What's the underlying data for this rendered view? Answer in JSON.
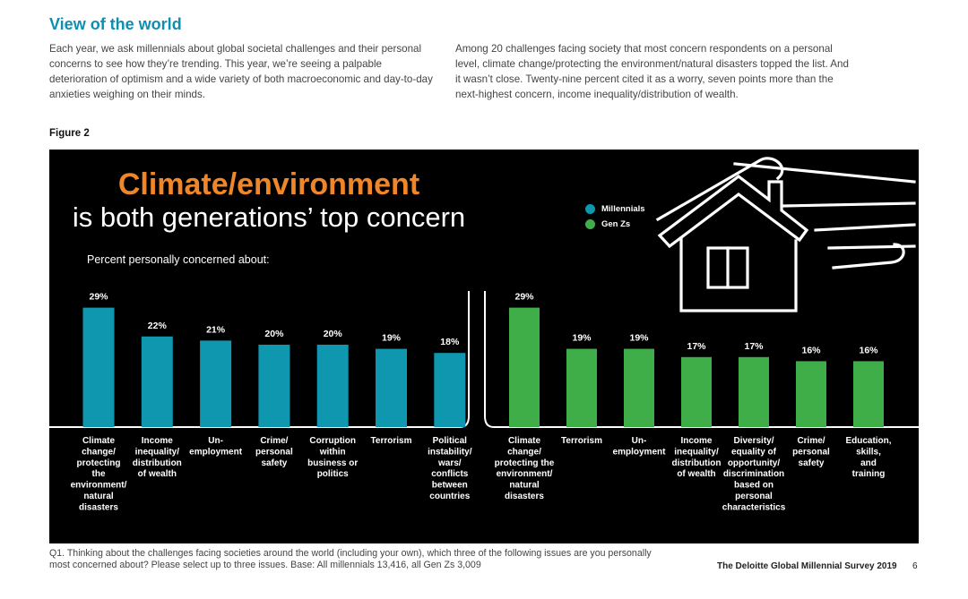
{
  "section_title": "View of the world",
  "intro_left": "Each year, we ask millennials about global societal challenges and their personal concerns to see how they’re trending. This year, we’re seeing a palpable deterioration of optimism and a wide variety of both macroeconomic and day-to-day anxieties weighing on their minds.",
  "intro_right": "Among 20 challenges facing society that most concern respondents on a personal level, climate change/protecting the environment/natural disasters topped the list. And it wasn’t close. Twenty-nine percent cited it as a worry, seven points more than the next-highest concern, income inequality/distribution of wealth.",
  "figure_label": "Figure 2",
  "footnote": "Q1. Thinking about the challenges facing societies around the world (including your own), which three of the following issues are you personally most concerned about? Please select up to three issues. Base: All millennials 13,416, all Gen Zs 3,009",
  "publication": "The Deloitte Global Millennial Survey 2019",
  "page_number": "6",
  "colors": {
    "millennials": "#0e97ae",
    "genz": "#3fae49",
    "accent_orange": "#f0862a",
    "panel_bg": "#000000"
  },
  "chart_data": {
    "type": "bar",
    "title": "Climate/environment",
    "subtitle": "is both generations’ top concern",
    "ylabel": "Percent personally concerned about:",
    "ylim": [
      0,
      31
    ],
    "legend": {
      "position": "top-right",
      "entries": [
        "Millennials",
        "Gen Zs"
      ]
    },
    "groups": [
      {
        "name": "Millennials",
        "categories": [
          "Climate change/ protecting the environment/ natural disasters",
          "Income inequality/ distribution of wealth",
          "Un- employment",
          "Crime/ personal safety",
          "Corruption within business or politics",
          "Terrorism",
          "Political instability/ wars/ conflicts between countries"
        ],
        "category_lines": [
          [
            "Climate",
            "change/",
            "protecting",
            "the",
            "environment/",
            "natural",
            "disasters"
          ],
          [
            "Income",
            "inequality/",
            "distribution",
            "of wealth"
          ],
          [
            "Un-",
            "employment"
          ],
          [
            "Crime/",
            "personal",
            "safety"
          ],
          [
            "Corruption",
            "within",
            "business or",
            "politics"
          ],
          [
            "Terrorism"
          ],
          [
            "Political",
            "instability/",
            "wars/",
            "conflicts",
            "between",
            "countries"
          ]
        ],
        "values": [
          29,
          22,
          21,
          20,
          20,
          19,
          18
        ],
        "labels": [
          "29%",
          "22%",
          "21%",
          "20%",
          "20%",
          "19%",
          "18%"
        ]
      },
      {
        "name": "Gen Zs",
        "categories": [
          "Climate change/ protecting the environment/ natural disasters",
          "Terrorism",
          "Un- employment",
          "Income inequality/ distribution of wealth",
          "Diversity/ equality of opportunity/ discrimination based on personal characteristics",
          "Crime/ personal safety",
          "Education, skills, and training"
        ],
        "category_lines": [
          [
            "Climate",
            "change/",
            "protecting the",
            "environment/",
            "natural",
            "disasters"
          ],
          [
            "Terrorism"
          ],
          [
            "Un-",
            "employment"
          ],
          [
            "Income",
            "inequality/",
            "distribution",
            "of wealth"
          ],
          [
            "Diversity/",
            "equality of",
            "opportunity/",
            "discrimination",
            "based on",
            "personal",
            "characteristics"
          ],
          [
            "Crime/",
            "personal",
            "safety"
          ],
          [
            "Education,",
            "skills,",
            "and",
            "training"
          ]
        ],
        "values": [
          29,
          19,
          19,
          17,
          17,
          16,
          16
        ],
        "labels": [
          "29%",
          "19%",
          "19%",
          "17%",
          "17%",
          "16%",
          "16%"
        ]
      }
    ]
  }
}
